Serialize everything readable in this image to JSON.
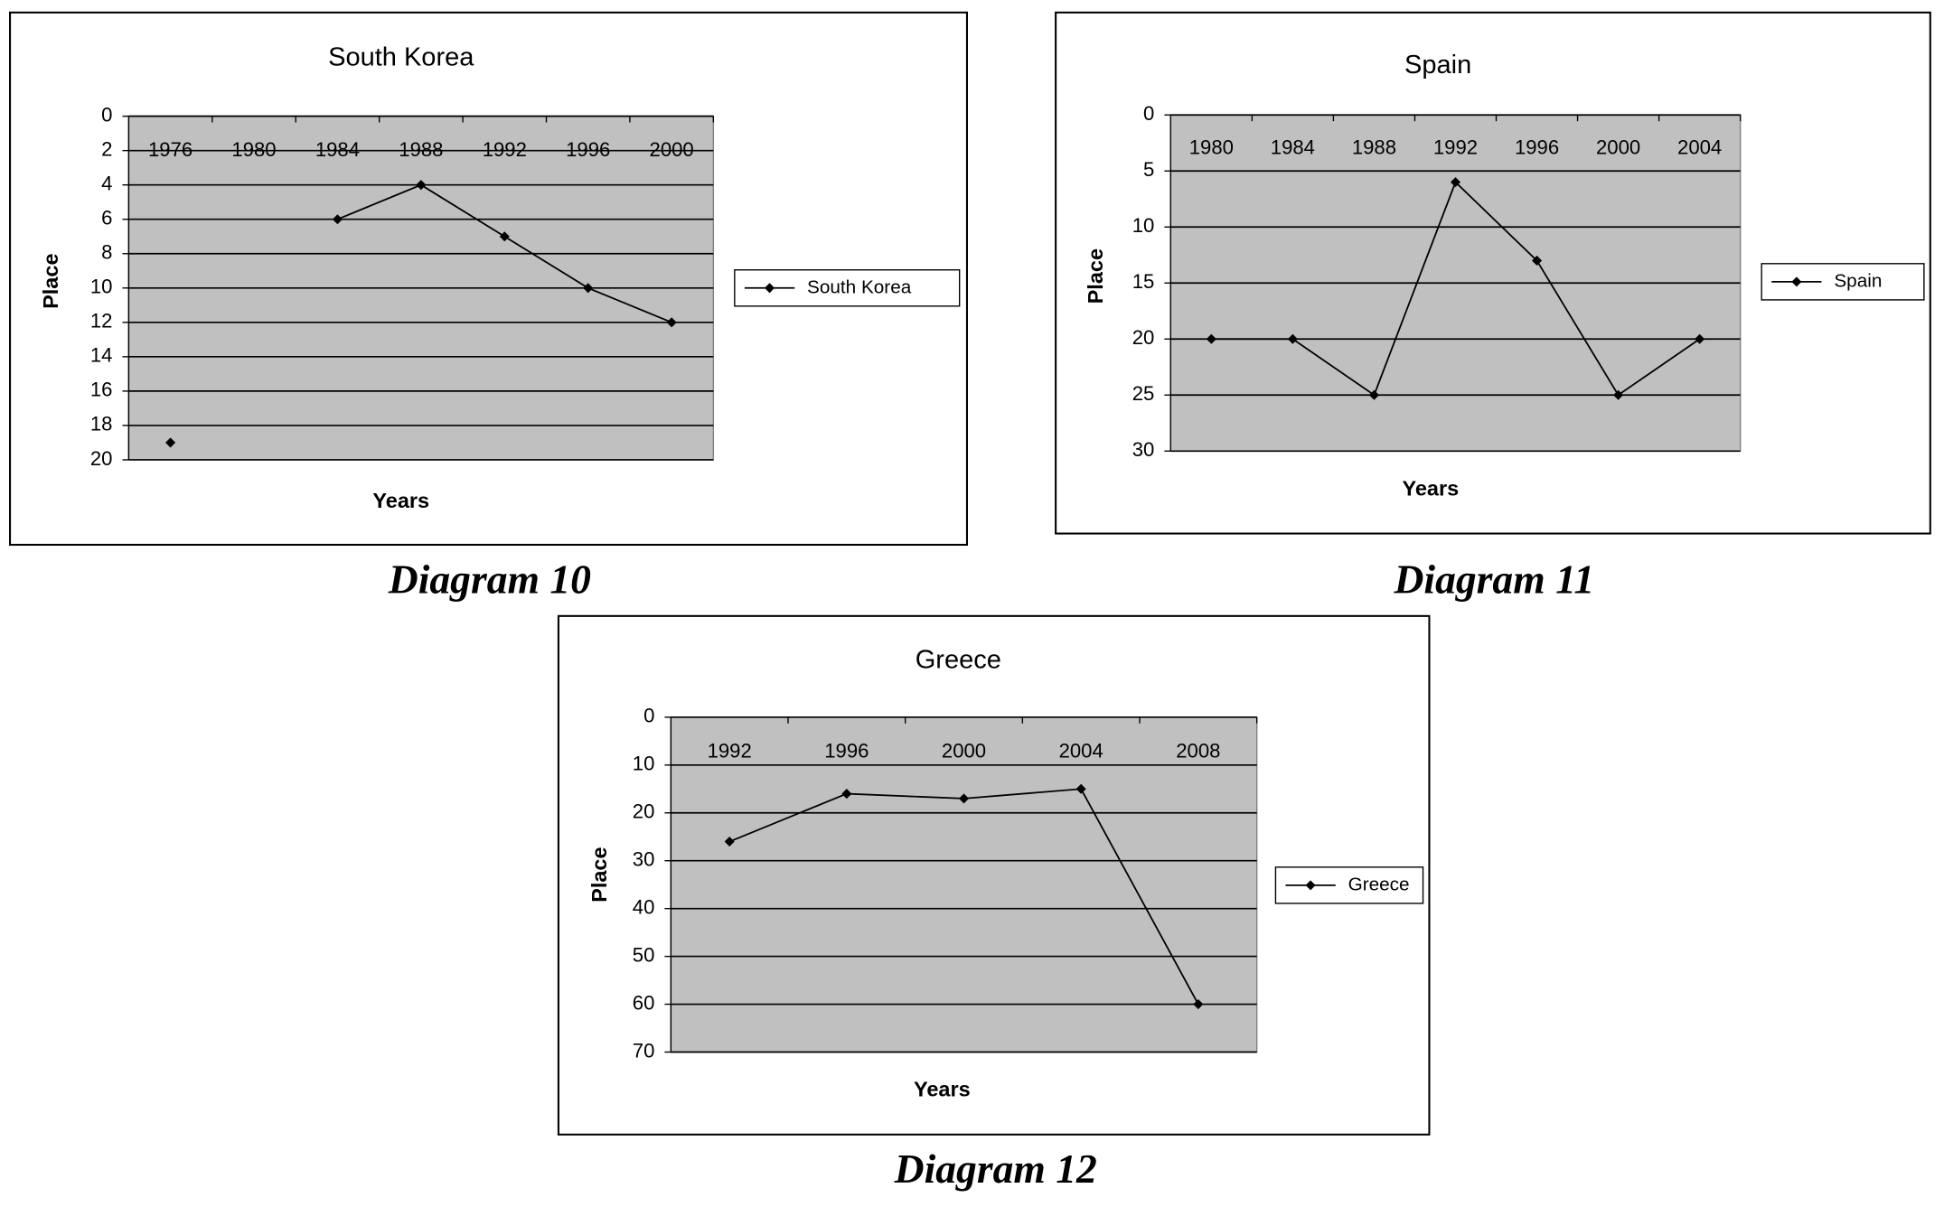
{
  "chart_data": [
    {
      "type": "line",
      "title": "South Korea",
      "x_label": "Years",
      "y_label": "Place",
      "caption": "Diagram 10",
      "categories": [
        "1976",
        "1980",
        "1984",
        "1988",
        "1992",
        "1996",
        "2000"
      ],
      "series": [
        {
          "name": "South Korea",
          "color": "#000000",
          "values": [
            19,
            null,
            6,
            4,
            7,
            10,
            12
          ]
        }
      ],
      "ylim": [
        0,
        20
      ],
      "yticks": [
        0,
        2,
        4,
        6,
        8,
        10,
        12,
        14,
        16,
        18,
        20
      ],
      "y_reversed": true,
      "grid": true,
      "legend": "right",
      "plot_color": "#c0c0c0"
    },
    {
      "type": "line",
      "title": "Spain",
      "x_label": "Years",
      "y_label": "Place",
      "caption": "Diagram 11",
      "categories": [
        "1980",
        "1984",
        "1988",
        "1992",
        "1996",
        "2000",
        "2004"
      ],
      "series": [
        {
          "name": "Spain",
          "color": "#000000",
          "values": [
            20,
            20,
            25,
            6,
            13,
            25,
            20
          ]
        }
      ],
      "ylim": [
        0,
        30
      ],
      "yticks": [
        0,
        5,
        10,
        15,
        20,
        25,
        30
      ],
      "y_reversed": true,
      "grid": true,
      "legend": "right",
      "plot_color": "#c0c0c0"
    },
    {
      "type": "line",
      "title": "Greece",
      "x_label": "Years",
      "y_label": "Place",
      "caption": "Diagram 12",
      "categories": [
        "1992",
        "1996",
        "2000",
        "2004",
        "2008"
      ],
      "series": [
        {
          "name": "Greece",
          "color": "#000000",
          "values": [
            26,
            16,
            17,
            15,
            60
          ]
        }
      ],
      "ylim": [
        0,
        70
      ],
      "yticks": [
        0,
        10,
        20,
        30,
        40,
        50,
        60,
        70
      ],
      "y_reversed": true,
      "grid": true,
      "legend": "right",
      "plot_color": "#c0c0c0"
    }
  ]
}
